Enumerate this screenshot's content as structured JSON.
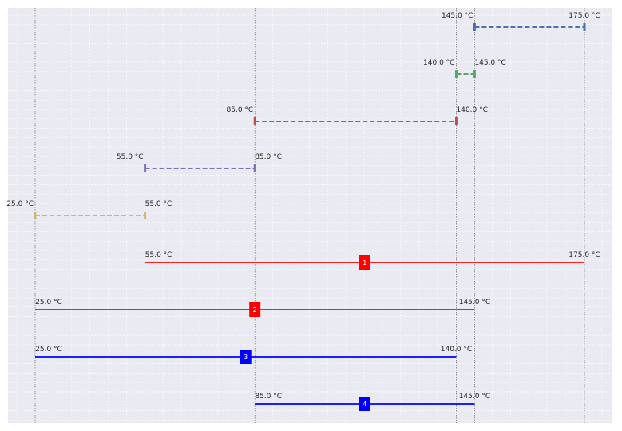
{
  "chart_data": {
    "type": "interval",
    "title": "",
    "xlabel": "",
    "ylabel": "",
    "unit": "°C",
    "xlim": [
      20,
      187
    ],
    "grid": true,
    "vertical_reference_lines": [
      25.0,
      55.0,
      85.0,
      140.0,
      145.0,
      175.0
    ],
    "dashed_intervals": [
      {
        "start": 145.0,
        "end": 175.0,
        "start_label": "145.0 °C",
        "end_label": "175.0 °C",
        "color": "#4c72b0"
      },
      {
        "start": 140.0,
        "end": 145.0,
        "start_label": "140.0 °C",
        "end_label": "145.0 °C",
        "color": "#55a868"
      },
      {
        "start": 85.0,
        "end": 140.0,
        "start_label": "85.0 °C",
        "end_label": "140.0 °C",
        "color": "#c44e52"
      },
      {
        "start": 55.0,
        "end": 85.0,
        "start_label": "55.0 °C",
        "end_label": "85.0 °C",
        "color": "#8172b2"
      },
      {
        "start": 25.0,
        "end": 55.0,
        "start_label": "25.0 °C",
        "end_label": "55.0 °C",
        "color": "#ccb974"
      }
    ],
    "solid_intervals": [
      {
        "id": "1",
        "start": 55.0,
        "end": 175.0,
        "start_label": "55.0 °C",
        "end_label": "175.0 °C",
        "color": "#ff0000"
      },
      {
        "id": "2",
        "start": 25.0,
        "end": 145.0,
        "start_label": "25.0 °C",
        "end_label": "145.0 °C",
        "color": "#ff0000"
      },
      {
        "id": "3",
        "start": 25.0,
        "end": 140.0,
        "start_label": "25.0 °C",
        "end_label": "140.0 °C",
        "color": "#0000ff"
      },
      {
        "id": "4",
        "start": 85.0,
        "end": 145.0,
        "start_label": "85.0 °C",
        "end_label": "145.0 °C",
        "color": "#0000ff"
      }
    ]
  },
  "colors": {
    "plot_background": "#eaeaf2",
    "grid": "#ffffff",
    "reference_line": "#7a7a7a",
    "text": "#262626"
  }
}
